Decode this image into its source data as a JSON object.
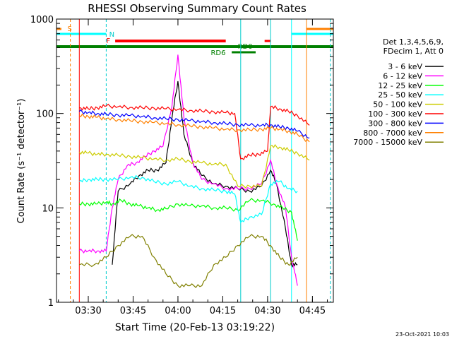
{
  "chart_data": {
    "type": "line",
    "title": "RHESSI Observing Summary Count Rates",
    "xlabel": "Start Time (20-Feb-13 03:19:22)",
    "ylabel": "Count Rate (s⁻¹ detector⁻¹)",
    "yscale": "log",
    "ylim": [
      1,
      1000
    ],
    "xlim": [
      "03:19:22",
      "04:52:00"
    ],
    "x_ticks": [
      "03:30",
      "03:45",
      "04:00",
      "04:15",
      "04:30",
      "04:45"
    ],
    "y_ticks": [
      "1",
      "10",
      "100",
      "1000"
    ],
    "legend_header": [
      "Det 1,3,4,5,6,9,",
      "FDecim 1, Att 0"
    ],
    "series": [
      {
        "name": "3 - 6 keV",
        "color": "#000000",
        "points": [
          [
            "03:28",
            null
          ],
          [
            "03:36",
            null
          ],
          [
            "03:38",
            2.5
          ],
          [
            "03:40",
            15
          ],
          [
            "03:44",
            18
          ],
          [
            "03:47",
            22
          ],
          [
            "03:50",
            25
          ],
          [
            "03:53",
            25
          ],
          [
            "03:56",
            30
          ],
          [
            "03:58",
            90
          ],
          [
            "04:00",
            220
          ],
          [
            "04:02",
            60
          ],
          [
            "04:05",
            30
          ],
          [
            "04:08",
            22
          ],
          [
            "04:12",
            18
          ],
          [
            "04:16",
            17
          ],
          [
            "04:20",
            16
          ],
          [
            "04:24",
            15
          ],
          [
            "04:28",
            17
          ],
          [
            "04:31",
            25
          ],
          [
            "04:33",
            18
          ],
          [
            "04:36",
            6
          ],
          [
            "04:38",
            2.5
          ],
          [
            "04:40",
            2.5
          ]
        ]
      },
      {
        "name": "6 - 12 keV",
        "color": "#ff00ff",
        "points": [
          [
            "03:27",
            3.5
          ],
          [
            "03:30",
            3.5
          ],
          [
            "03:33",
            3.5
          ],
          [
            "03:36",
            3.5
          ],
          [
            "03:38",
            10
          ],
          [
            "03:40",
            20
          ],
          [
            "03:43",
            28
          ],
          [
            "03:46",
            30
          ],
          [
            "03:49",
            35
          ],
          [
            "03:52",
            40
          ],
          [
            "03:55",
            45
          ],
          [
            "03:58",
            120
          ],
          [
            "04:00",
            420
          ],
          [
            "04:02",
            90
          ],
          [
            "04:05",
            30
          ],
          [
            "04:08",
            20
          ],
          [
            "04:12",
            18
          ],
          [
            "04:16",
            16
          ],
          [
            "04:20",
            16
          ],
          [
            "04:24",
            16
          ],
          [
            "04:28",
            18
          ],
          [
            "04:31",
            32
          ],
          [
            "04:33",
            18
          ],
          [
            "04:36",
            10
          ],
          [
            "04:38",
            3
          ],
          [
            "04:40",
            1.5
          ]
        ]
      },
      {
        "name": "12 - 25 keV",
        "color": "#00ff00",
        "points": [
          [
            "03:27",
            11
          ],
          [
            "03:30",
            11
          ],
          [
            "03:33",
            11
          ],
          [
            "03:36",
            11.5
          ],
          [
            "03:38",
            11
          ],
          [
            "03:41",
            12
          ],
          [
            "03:44",
            11
          ],
          [
            "03:47",
            10.5
          ],
          [
            "03:50",
            10
          ],
          [
            "03:53",
            9.5
          ],
          [
            "03:56",
            9.8
          ],
          [
            "04:00",
            11
          ],
          [
            "04:04",
            10.5
          ],
          [
            "04:08",
            10.5
          ],
          [
            "04:12",
            10
          ],
          [
            "04:16",
            10
          ],
          [
            "04:20",
            9.5
          ],
          [
            "04:24",
            12
          ],
          [
            "04:28",
            12
          ],
          [
            "04:32",
            11
          ],
          [
            "04:35",
            10
          ],
          [
            "04:38",
            9
          ],
          [
            "04:40",
            4.5
          ]
        ]
      },
      {
        "name": "25 - 50 keV",
        "color": "#00ffff",
        "points": [
          [
            "03:27",
            19
          ],
          [
            "03:30",
            20
          ],
          [
            "03:33",
            20
          ],
          [
            "03:36",
            20
          ],
          [
            "03:40",
            20
          ],
          [
            "03:44",
            21
          ],
          [
            "03:48",
            21
          ],
          [
            "03:52",
            19
          ],
          [
            "03:56",
            18
          ],
          [
            "04:00",
            19
          ],
          [
            "04:04",
            17
          ],
          [
            "04:08",
            16
          ],
          [
            "04:12",
            15.5
          ],
          [
            "04:16",
            15
          ],
          [
            "04:19",
            14
          ],
          [
            "04:21",
            7
          ],
          [
            "04:24",
            8
          ],
          [
            "04:28",
            8.5
          ],
          [
            "04:31",
            18
          ],
          [
            "04:34",
            19
          ],
          [
            "04:37",
            16
          ],
          [
            "04:40",
            15
          ]
        ]
      },
      {
        "name": "50 - 100 keV",
        "color": "#cccc00",
        "points": [
          [
            "03:27",
            39
          ],
          [
            "03:30",
            38
          ],
          [
            "03:33",
            37
          ],
          [
            "03:36",
            37
          ],
          [
            "03:40",
            36
          ],
          [
            "03:44",
            35
          ],
          [
            "03:48",
            34
          ],
          [
            "03:52",
            33
          ],
          [
            "03:56",
            32
          ],
          [
            "04:00",
            33
          ],
          [
            "04:04",
            31
          ],
          [
            "04:08",
            30
          ],
          [
            "04:12",
            29
          ],
          [
            "04:16",
            29
          ],
          [
            "04:20",
            17
          ],
          [
            "04:24",
            17
          ],
          [
            "04:28",
            17
          ],
          [
            "04:31",
            45
          ],
          [
            "04:34",
            44
          ],
          [
            "04:37",
            41
          ],
          [
            "04:40",
            38
          ],
          [
            "04:44",
            32
          ]
        ]
      },
      {
        "name": "100 - 300 keV",
        "color": "#ff0000",
        "points": [
          [
            "03:27",
            115
          ],
          [
            "03:30",
            112
          ],
          [
            "03:33",
            115
          ],
          [
            "03:36",
            120
          ],
          [
            "03:40",
            118
          ],
          [
            "03:44",
            116
          ],
          [
            "03:48",
            115
          ],
          [
            "03:52",
            114
          ],
          [
            "03:56",
            112
          ],
          [
            "04:00",
            110
          ],
          [
            "04:04",
            108
          ],
          [
            "04:08",
            106
          ],
          [
            "04:12",
            104
          ],
          [
            "04:16",
            102
          ],
          [
            "04:19",
            100
          ],
          [
            "04:21",
            33
          ],
          [
            "04:24",
            36
          ],
          [
            "04:27",
            37
          ],
          [
            "04:30",
            40
          ],
          [
            "04:31",
            118
          ],
          [
            "04:34",
            112
          ],
          [
            "04:37",
            105
          ],
          [
            "04:40",
            95
          ],
          [
            "04:44",
            75
          ]
        ]
      },
      {
        "name": "300 - 800 keV",
        "color": "#0000ff",
        "points": [
          [
            "03:27",
            105
          ],
          [
            "03:30",
            102
          ],
          [
            "03:33",
            100
          ],
          [
            "03:36",
            98
          ],
          [
            "03:40",
            96
          ],
          [
            "03:44",
            95
          ],
          [
            "03:48",
            93
          ],
          [
            "03:52",
            90
          ],
          [
            "03:56",
            88
          ],
          [
            "04:00",
            86
          ],
          [
            "04:04",
            84
          ],
          [
            "04:08",
            82
          ],
          [
            "04:12",
            80
          ],
          [
            "04:16",
            78
          ],
          [
            "04:20",
            76
          ],
          [
            "04:24",
            75
          ],
          [
            "04:28",
            75
          ],
          [
            "04:31",
            76
          ],
          [
            "04:34",
            72
          ],
          [
            "04:37",
            70
          ],
          [
            "04:40",
            65
          ],
          [
            "04:44",
            55
          ]
        ]
      },
      {
        "name": "800 - 7000 keV",
        "color": "#ff8000",
        "points": [
          [
            "03:27",
            95
          ],
          [
            "03:30",
            93
          ],
          [
            "03:33",
            91
          ],
          [
            "03:36",
            88
          ],
          [
            "03:40",
            86
          ],
          [
            "03:44",
            84
          ],
          [
            "03:48",
            82
          ],
          [
            "03:52",
            80
          ],
          [
            "03:56",
            78
          ],
          [
            "04:00",
            76
          ],
          [
            "04:04",
            74
          ],
          [
            "04:08",
            72
          ],
          [
            "04:12",
            70
          ],
          [
            "04:16",
            68
          ],
          [
            "04:20",
            67
          ],
          [
            "04:24",
            67
          ],
          [
            "04:28",
            68
          ],
          [
            "04:31",
            70
          ],
          [
            "04:34",
            68
          ],
          [
            "04:37",
            65
          ],
          [
            "04:40",
            60
          ],
          [
            "04:44",
            50
          ]
        ]
      },
      {
        "name": "7000 - 15000 keV",
        "color": "#808000",
        "points": [
          [
            "03:27",
            2.5
          ],
          [
            "03:32",
            2.5
          ],
          [
            "03:36",
            3
          ],
          [
            "03:40",
            4
          ],
          [
            "03:44",
            5
          ],
          [
            "03:48",
            5
          ],
          [
            "03:52",
            3
          ],
          [
            "03:56",
            2
          ],
          [
            "04:00",
            1.5
          ],
          [
            "04:04",
            1.5
          ],
          [
            "04:08",
            1.5
          ],
          [
            "04:12",
            2.5
          ],
          [
            "04:16",
            3
          ],
          [
            "04:20",
            4
          ],
          [
            "04:24",
            5
          ],
          [
            "04:28",
            5
          ],
          [
            "04:31",
            4
          ],
          [
            "04:34",
            3
          ],
          [
            "04:37",
            2.5
          ],
          [
            "04:40",
            3
          ]
        ]
      }
    ],
    "annotations": {
      "flags": [
        "S",
        "N",
        "F",
        "RD0",
        "RD6"
      ],
      "timestamp": "23-Oct-2021 10:03"
    }
  }
}
